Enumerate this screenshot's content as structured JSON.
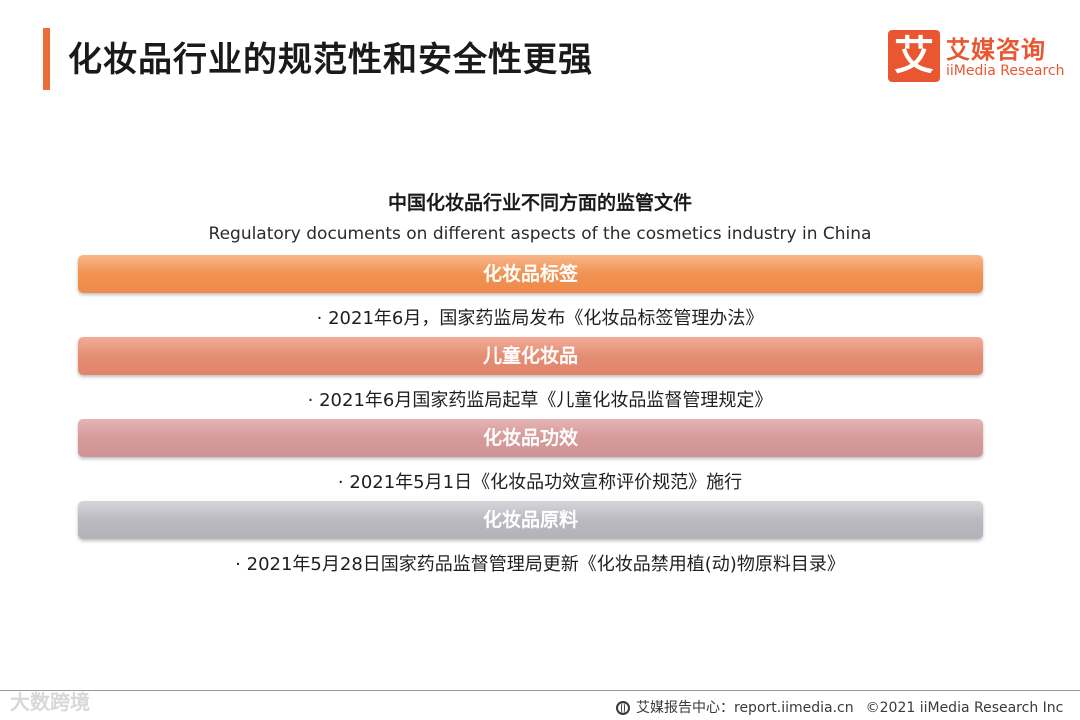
{
  "header": {
    "title": "化妆品行业的规范性和安全性更强",
    "logo_mark": "艾",
    "logo_cn": "艾媒咨询",
    "logo_en": "iiMedia Research",
    "accent_color": "#ec6b3b"
  },
  "section": {
    "title": "中国化妆品行业不同方面的监管文件",
    "subtitle": "Regulatory documents on different aspects of the cosmetics industry in China"
  },
  "categories": [
    {
      "label": "化妆品标签",
      "item": "· 2021年6月，国家药监局发布《化妆品标签管理办法》",
      "color": "#f09252"
    },
    {
      "label": "儿童化妆品",
      "item": "· 2021年6月国家药监局起草《儿童化妆品监督管理规定》",
      "color": "#e58d74"
    },
    {
      "label": "化妆品功效",
      "item": "· 2021年5月1日《化妆品功效宣称评价规范》施行",
      "color": "#d69a9a"
    },
    {
      "label": "化妆品原料",
      "item": "· 2021年5月28日国家药品监督管理局更新《化妆品禁用植(动)物原料目录》",
      "color": "#b9b9c0"
    }
  ],
  "footer": {
    "watermark": "大数跨境",
    "source": "艾媒报告中心：report.iimedia.cn",
    "copyright": "©2021  iiMedia Research  Inc"
  }
}
